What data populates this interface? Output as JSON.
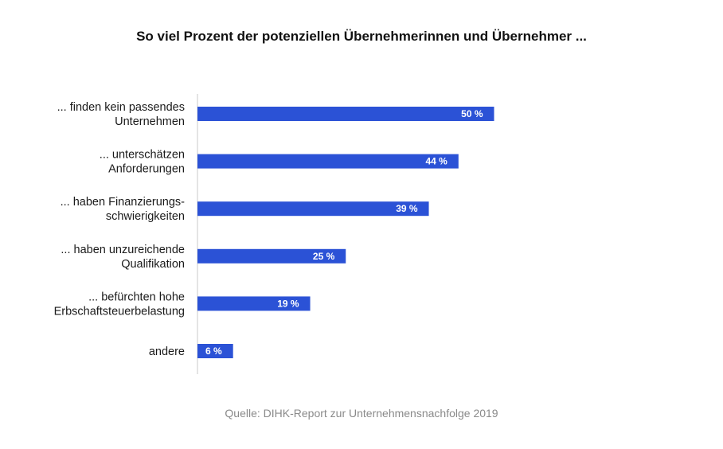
{
  "chart_data": {
    "type": "bar",
    "orientation": "horizontal",
    "title": "So viel Prozent der potenziellen Übernehmerinnen und Übernehmer ...",
    "source": "Quelle: DIHK-Report zur Unternehmensnachfolge 2019",
    "categories": [
      [
        "... finden kein passendes",
        "Unternehmen"
      ],
      [
        "... unterschätzen",
        "Anforderungen"
      ],
      [
        "... haben Finanzierungs-",
        "schwierigkeiten"
      ],
      [
        "... haben unzureichende",
        "Qualifikation"
      ],
      [
        "... befürchten hohe",
        "Erbschaftsteuerbelastung"
      ],
      [
        "andere"
      ]
    ],
    "values": [
      50,
      44,
      39,
      25,
      19,
      6
    ],
    "value_labels": [
      "50 %",
      "44 %",
      "39 %",
      "25 %",
      "19 %",
      "6 %"
    ],
    "bar_color": "#2b52d6",
    "grid": false,
    "legend": "none"
  }
}
